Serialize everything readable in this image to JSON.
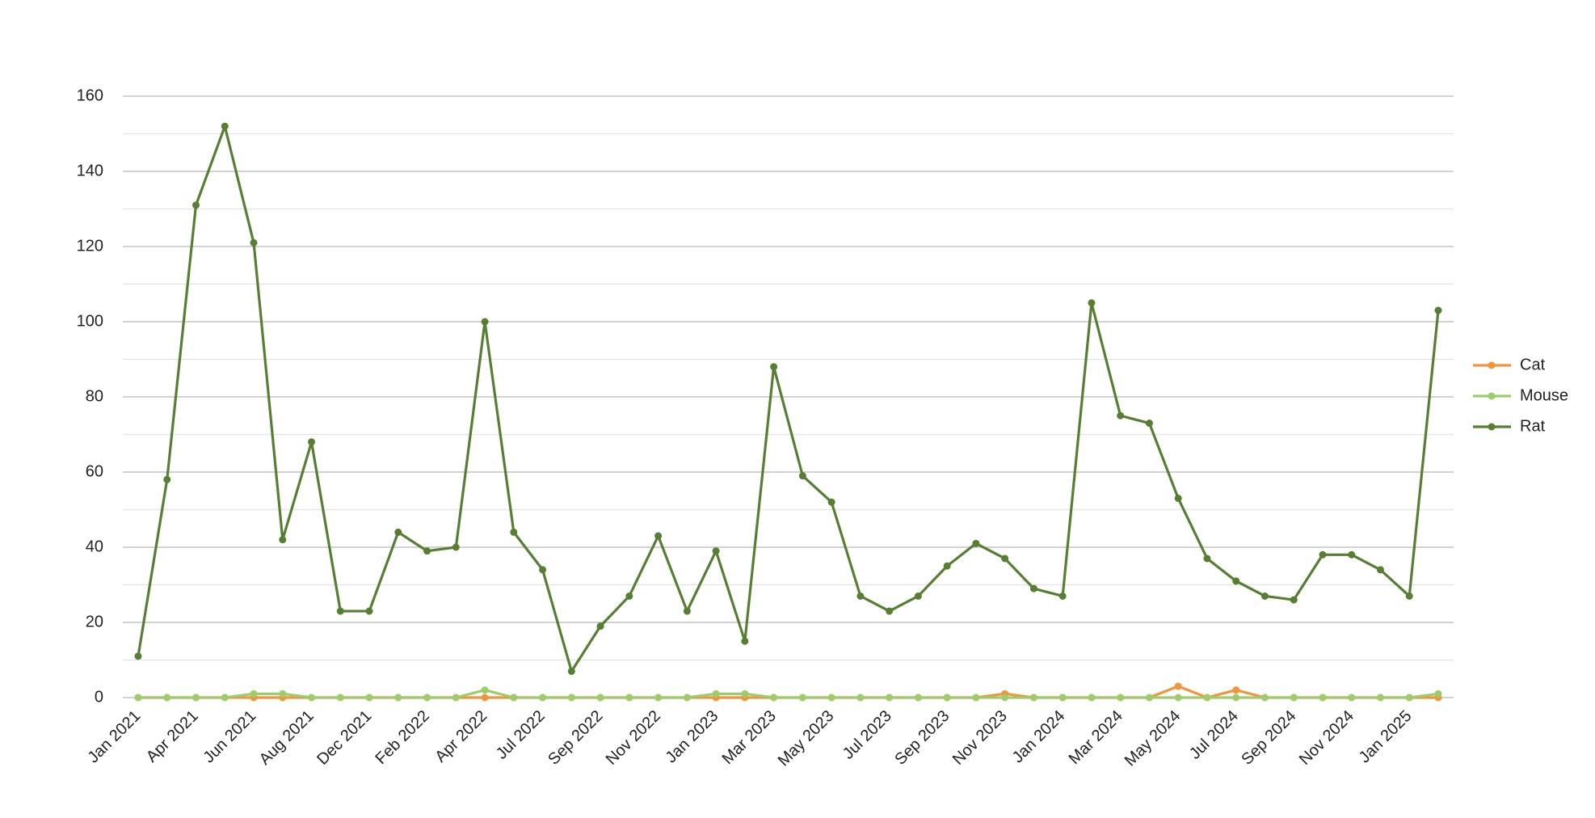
{
  "chart_data": {
    "type": "line",
    "categories": [
      "Jan 2021",
      null,
      "Apr 2021",
      null,
      "Jun 2021",
      null,
      "Aug 2021",
      null,
      "Dec 2021",
      null,
      "Feb 2022",
      null,
      "Apr 2022",
      null,
      "Jul 2022",
      null,
      "Sep 2022",
      null,
      "Nov 2022",
      null,
      "Jan 2023",
      null,
      "Mar 2023",
      null,
      "May 2023",
      null,
      "Jul 2023",
      null,
      "Sep 2023",
      null,
      "Nov 2023",
      null,
      "Jan 2024",
      null,
      "Mar 2024",
      null,
      "May 2024",
      null,
      "Jul 2024",
      null,
      "Sep 2024",
      null,
      "Nov 2024",
      null,
      "Jan 2025",
      null
    ],
    "series": [
      {
        "name": "Cat",
        "color": "#f0953b",
        "values": [
          0,
          0,
          0,
          0,
          0,
          0,
          0,
          0,
          0,
          0,
          0,
          0,
          0,
          0,
          0,
          0,
          0,
          0,
          0,
          0,
          0,
          0,
          0,
          0,
          0,
          0,
          0,
          0,
          0,
          0,
          1,
          0,
          0,
          0,
          0,
          0,
          3,
          0,
          2,
          0,
          0,
          0,
          0,
          0,
          0,
          0
        ]
      },
      {
        "name": "Mouse",
        "color": "#9dcd6a",
        "values": [
          0,
          0,
          0,
          0,
          1,
          1,
          0,
          0,
          0,
          0,
          0,
          0,
          2,
          0,
          0,
          0,
          0,
          0,
          0,
          0,
          1,
          1,
          0,
          0,
          0,
          0,
          0,
          0,
          0,
          0,
          0,
          0,
          0,
          0,
          0,
          0,
          0,
          0,
          0,
          0,
          0,
          0,
          0,
          0,
          0,
          1
        ]
      },
      {
        "name": "Rat",
        "color": "#577f33",
        "values": [
          11,
          58,
          131,
          152,
          121,
          42,
          68,
          23,
          23,
          44,
          39,
          40,
          100,
          44,
          34,
          7,
          19,
          27,
          43,
          23,
          39,
          15,
          88,
          59,
          52,
          27,
          23,
          27,
          35,
          41,
          37,
          29,
          27,
          105,
          75,
          73,
          53,
          37,
          31,
          27,
          26,
          38,
          38,
          34,
          27,
          103
        ]
      }
    ],
    "ylim": [
      0,
      160
    ],
    "yticks": [
      0,
      20,
      40,
      60,
      80,
      100,
      120,
      140,
      160
    ],
    "grid": true,
    "legend": "right"
  }
}
